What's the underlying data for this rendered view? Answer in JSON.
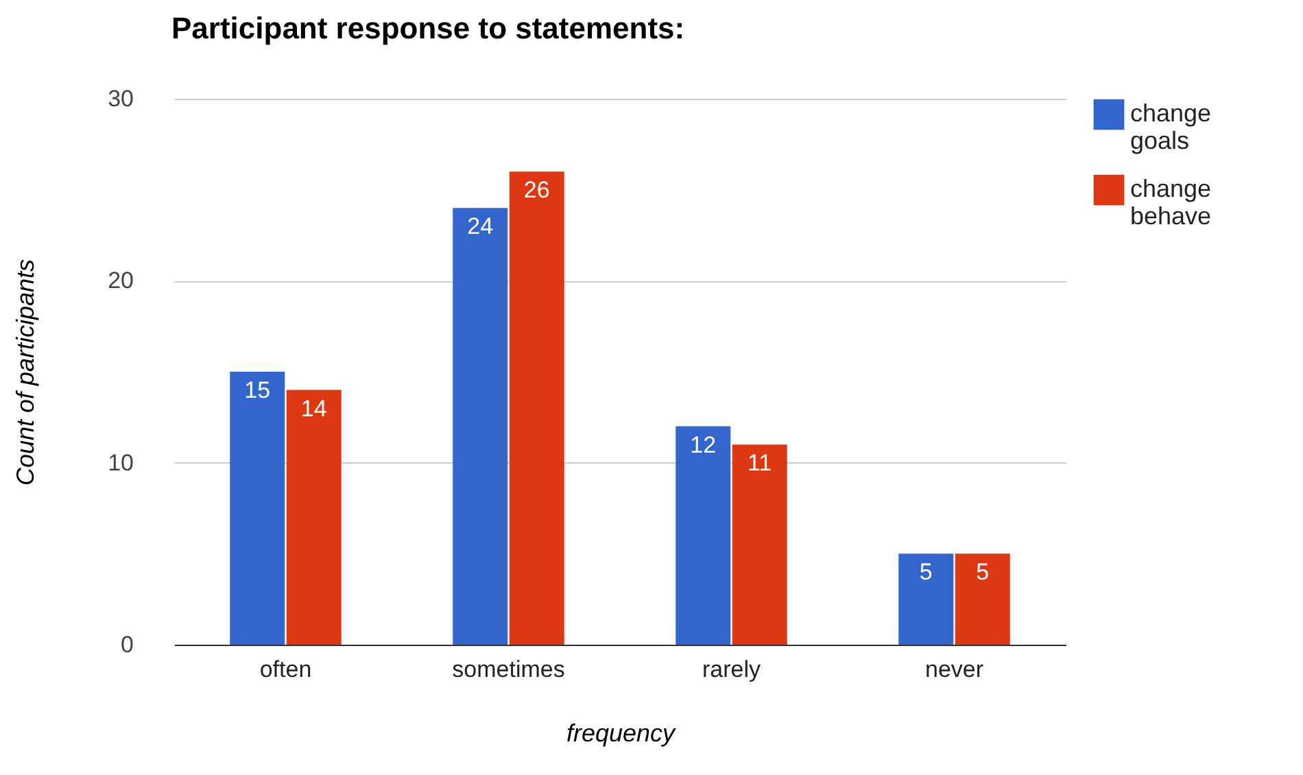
{
  "chart_data": {
    "type": "bar",
    "title": "Participant response to statements:",
    "xlabel": "frequency",
    "ylabel": "Count of participants",
    "categories": [
      "often",
      "sometimes",
      "rarely",
      "never"
    ],
    "series": [
      {
        "name": "change goals",
        "color": "#3366cc",
        "values": [
          15,
          24,
          12,
          5
        ]
      },
      {
        "name": "change behave",
        "color": "#dc3912",
        "values": [
          14,
          26,
          11,
          5
        ]
      }
    ],
    "ylim": [
      0,
      30
    ],
    "yticks": [
      0,
      10,
      20,
      30
    ],
    "grid": "y",
    "legend": "top right",
    "data_labels": true
  }
}
